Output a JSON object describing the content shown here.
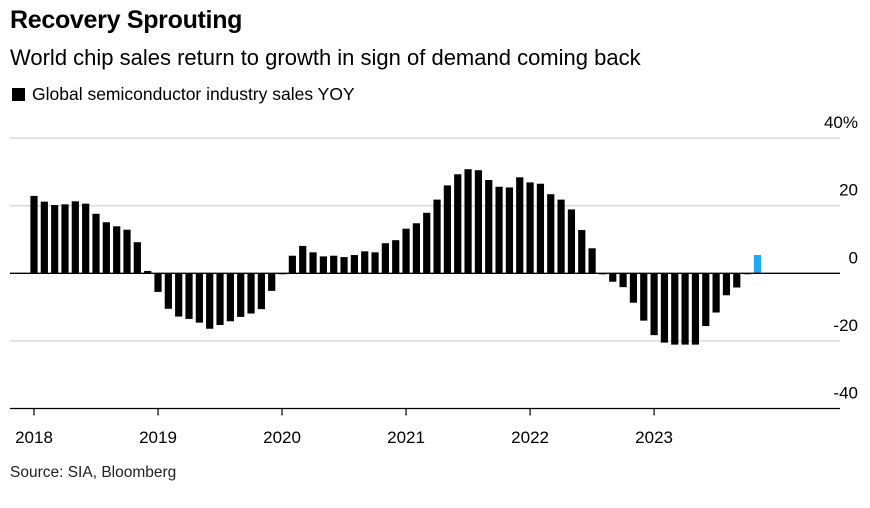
{
  "chart_data": {
    "type": "bar",
    "title": "Recovery Sprouting",
    "subtitle": "World chip sales return to growth in sign of demand coming back",
    "legend": [
      {
        "name": "Global semiconductor industry sales YOY",
        "color": "#000000"
      }
    ],
    "legend_placement": "top-left",
    "source": "Source: SIA, Bloomberg",
    "x_tick_labels": [
      "2018",
      "2019",
      "2020",
      "2021",
      "2022",
      "2023"
    ],
    "y_tick_labels": [
      "40%",
      "20",
      "0",
      "-20",
      "-40"
    ],
    "y_ticks": [
      40,
      20,
      0,
      -20,
      -40
    ],
    "ylim": [
      -40,
      40
    ],
    "x_range": [
      "2018-01",
      "2024-06"
    ],
    "grid": true,
    "y_axis_side": "right",
    "bar_color": "#000000",
    "highlight_color": "#1ea7f2",
    "highlight_last": true,
    "start_month": "2018-01",
    "values": [
      22.9,
      21.2,
      20.2,
      20.4,
      21.3,
      20.6,
      17.6,
      15.1,
      13.9,
      12.9,
      9.2,
      0.7,
      -5.5,
      -10.5,
      -12.8,
      -13.5,
      -14.6,
      -16.4,
      -15.3,
      -14.2,
      -12.9,
      -11.9,
      -10.6,
      -5.2,
      0.0,
      5.2,
      8.1,
      6.2,
      5.0,
      5.2,
      4.8,
      5.4,
      6.5,
      6.2,
      8.9,
      9.8,
      13.2,
      14.8,
      17.9,
      21.8,
      26.0,
      29.3,
      30.8,
      30.5,
      27.6,
      25.6,
      25.4,
      28.4,
      26.9,
      26.5,
      23.4,
      21.8,
      18.9,
      12.8,
      7.4,
      -0.3,
      -2.5,
      -4.1,
      -8.7,
      -14.0,
      -18.3,
      -20.5,
      -21.1,
      -21.1,
      -21.1,
      -15.6,
      -11.6,
      -6.5,
      -4.2,
      -0.2,
      5.4
    ]
  }
}
